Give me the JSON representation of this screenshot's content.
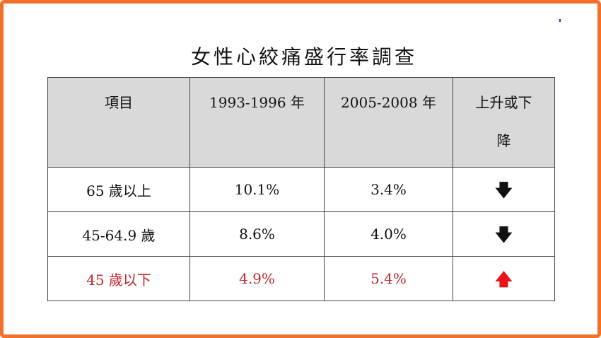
{
  "title": "女性心絞痛盛行率調查",
  "table": {
    "headers": {
      "item": "項目",
      "period1": "1993-1996 年",
      "period2": "2005-2008 年",
      "change_line1": "上升或下",
      "change_line2": "降"
    },
    "rows": [
      {
        "group": "65 歲以上",
        "period1": "10.1%",
        "period2": "3.4%",
        "trend": "down",
        "trend_glyph": "🡇"
      },
      {
        "group": "45-64.9 歲",
        "period1": "8.6%",
        "period2": "4.0%",
        "trend": "down",
        "trend_glyph": "🡇"
      },
      {
        "group": "45 歲以下",
        "period1": "4.9%",
        "period2": "5.4%",
        "trend": "up",
        "trend_glyph": "🡅"
      }
    ]
  },
  "colors": {
    "frame_border": "#f2712a",
    "header_fill": "#d9d9d9",
    "highlight_text": "#c2262b",
    "up_arrow": "#e8141a",
    "down_arrow": "#111111"
  },
  "icons": {
    "down": "arrow-down-icon",
    "up": "arrow-up-icon"
  }
}
